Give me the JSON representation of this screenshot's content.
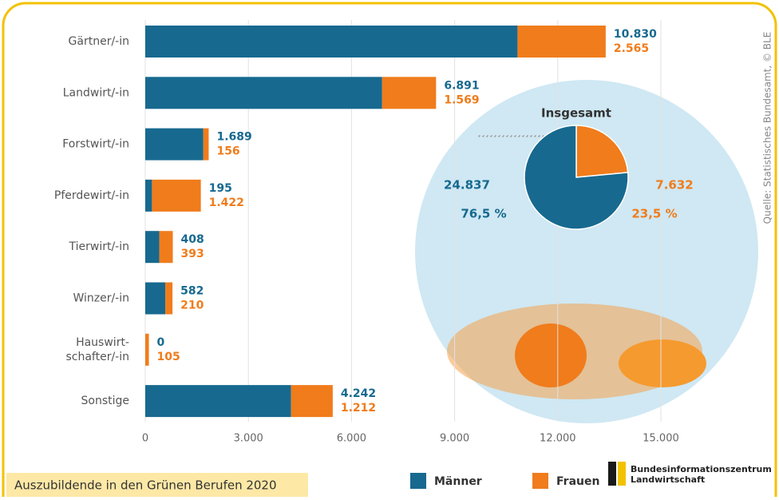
{
  "chart_data": [
    {
      "type": "bar",
      "orientation": "horizontal",
      "stacked": true,
      "categories": [
        "Gärtner/-in",
        "Landwirt/-in",
        "Forstwirt/-in",
        "Pferdewirt/-in",
        "Tierwirt/-in",
        "Winzer/-in",
        "Hauswirt-\nschafter/-in",
        "Sonstige"
      ],
      "series": [
        {
          "name": "Männer",
          "color": "#17698f",
          "values": [
            10830,
            6891,
            1689,
            195,
            408,
            582,
            0,
            4242
          ],
          "value_labels": [
            "10.830",
            "6.891",
            "1.689",
            "195",
            "408",
            "582",
            "0",
            "4.242"
          ]
        },
        {
          "name": "Frauen",
          "color": "#f07c1c",
          "values": [
            2565,
            1569,
            156,
            1422,
            393,
            210,
            105,
            1212
          ],
          "value_labels": [
            "2.565",
            "1.569",
            "156",
            "1.422",
            "393",
            "210",
            "105",
            "1.212"
          ]
        }
      ],
      "xlim": [
        0,
        16500
      ],
      "xticks": [
        0,
        {
          "value": 3000,
          "label": "3.000"
        },
        {
          "value": 6000,
          "label": "6.000"
        },
        {
          "value": 9000,
          "label": "9.000"
        },
        {
          "value": 12000,
          "label": "12.000"
        },
        {
          "value": 15000,
          "label": "15.000"
        }
      ],
      "grid": true,
      "legend": "bottom"
    },
    {
      "type": "pie",
      "title": "Insgesamt",
      "categories": [
        "Männer",
        "Frauen"
      ],
      "colors": [
        "#17698f",
        "#f07c1c"
      ],
      "values": [
        76.5,
        23.5
      ],
      "value_labels": [
        "76,5 %",
        "23,5 %"
      ],
      "counts": [
        24837,
        7632
      ],
      "count_labels": [
        "24.837",
        "7.632"
      ]
    }
  ],
  "caption": "Auszubildende in den Grünen Berufen 2020",
  "source": "Quelle: Statistisches Bundesamt, © BLE",
  "logo": {
    "line1": "Bundesinformationszentrum",
    "line2": "Landwirtschaft"
  }
}
